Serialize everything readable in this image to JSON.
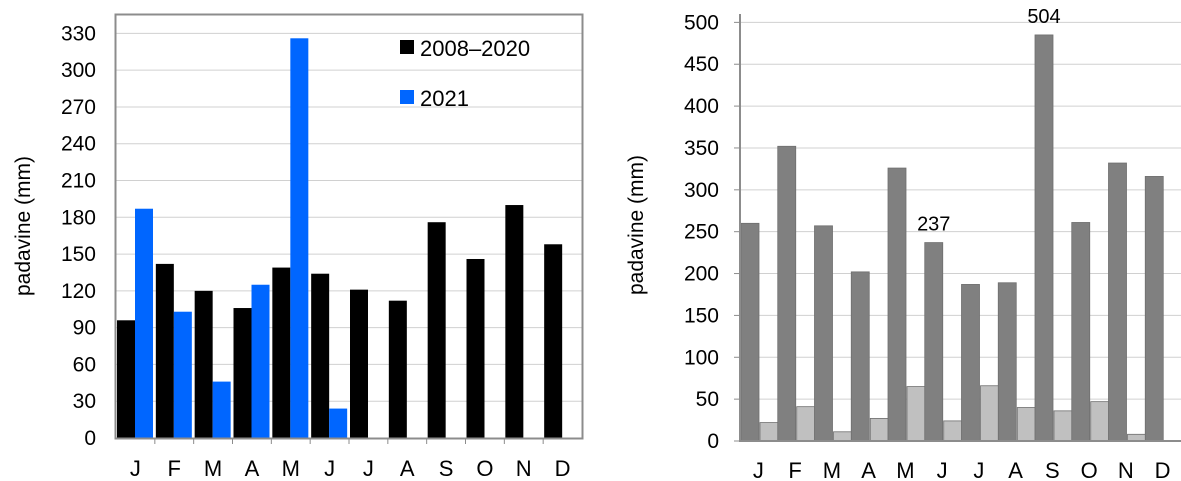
{
  "chart_data": [
    {
      "type": "bar",
      "categories": [
        "J",
        "F",
        "M",
        "A",
        "M",
        "J",
        "J",
        "A",
        "S",
        "O",
        "N",
        "D"
      ],
      "ylabel": "padavine (mm)",
      "xlabel": "",
      "ylim": [
        0,
        345
      ],
      "yticks": [
        0,
        30,
        60,
        90,
        120,
        150,
        180,
        210,
        240,
        270,
        300,
        330
      ],
      "grid": true,
      "legend_position": "top-right",
      "series": [
        {
          "name": "2008–2020",
          "color": "#000000",
          "values": [
            96,
            142,
            120,
            106,
            139,
            134,
            121,
            112,
            176,
            146,
            190,
            158
          ]
        },
        {
          "name": "2021",
          "color": "#0066ff",
          "values": [
            187,
            103,
            46,
            125,
            326,
            24,
            0,
            0,
            0,
            0,
            0,
            0
          ]
        }
      ]
    },
    {
      "type": "bar",
      "categories": [
        "J",
        "F",
        "M",
        "A",
        "M",
        "J",
        "J",
        "A",
        "S",
        "O",
        "N",
        "D"
      ],
      "ylabel": "padavine (mm)",
      "xlabel": "",
      "ylim": [
        0,
        510
      ],
      "yticks": [
        0,
        50,
        100,
        150,
        200,
        250,
        300,
        350,
        400,
        450,
        500
      ],
      "grid": true,
      "series": [
        {
          "color": "#808080",
          "values": [
            260,
            352,
            257,
            202,
            326,
            237,
            187,
            189,
            504,
            261,
            332,
            316
          ]
        },
        {
          "color": "#c0c0c0",
          "values": [
            22,
            41,
            11,
            27,
            65,
            24,
            66,
            40,
            36,
            47,
            8,
            0
          ]
        }
      ],
      "annotations": [
        {
          "text": "504",
          "category_index": 8,
          "series_index": 0
        },
        {
          "text": "237",
          "category_index": 5,
          "series_index": 0
        }
      ]
    }
  ]
}
